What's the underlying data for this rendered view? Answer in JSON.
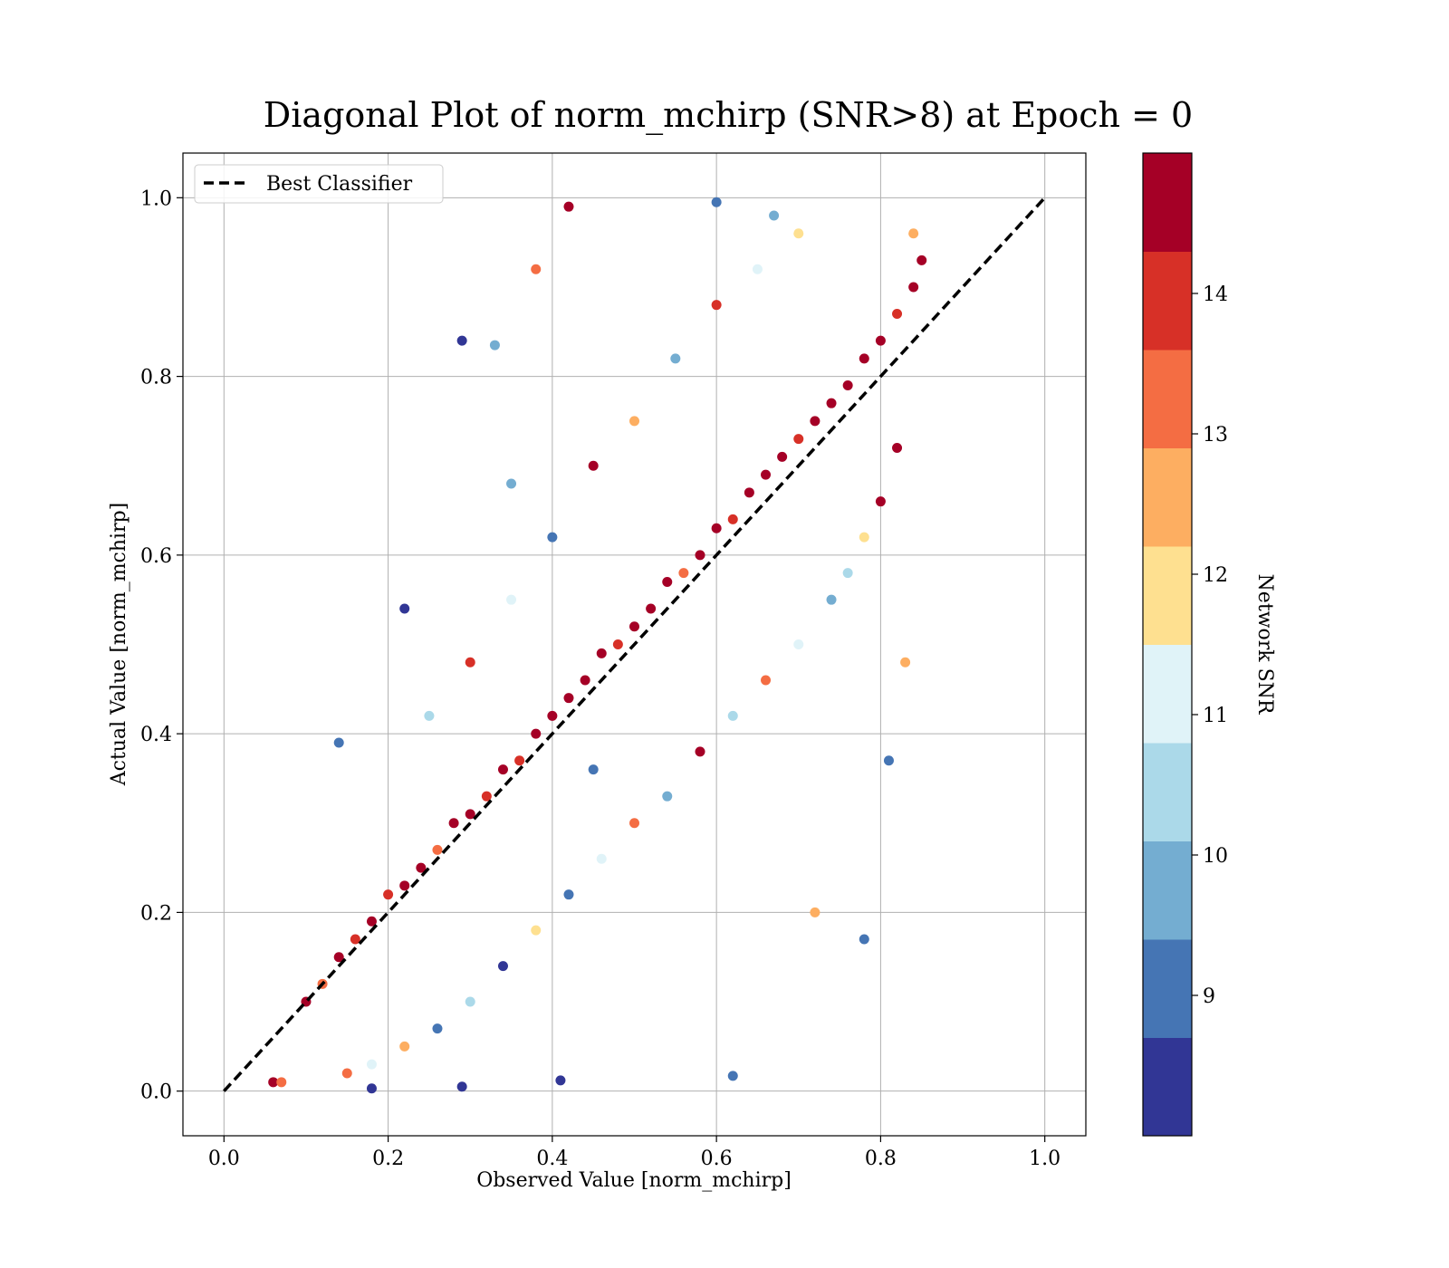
{
  "chart_data": {
    "type": "scatter",
    "title": "Diagonal Plot of norm_mchirp (SNR>8) at Epoch = 0",
    "xlabel": "Observed Value [norm_mchirp]",
    "ylabel": "Actual Value [norm_mchirp]",
    "xlim": [
      -0.05,
      1.05
    ],
    "ylim": [
      -0.05,
      1.05
    ],
    "x_ticks": [
      "0.0",
      "0.2",
      "0.4",
      "0.6",
      "0.8",
      "1.0"
    ],
    "y_ticks": [
      "0.0",
      "0.2",
      "0.4",
      "0.6",
      "0.8",
      "1.0"
    ],
    "grid": true,
    "legend": {
      "position": "top-left",
      "entries": [
        "Best Classifier"
      ]
    },
    "reference_line": {
      "name": "Best Classifier",
      "style": "dashed",
      "color": "#000000",
      "x": [
        0.0,
        1.0
      ],
      "y": [
        0.0,
        1.0
      ]
    },
    "colorbar": {
      "label": "Network SNR",
      "ticks": [
        "9",
        "10",
        "11",
        "12",
        "13",
        "14"
      ],
      "range": [
        8,
        15
      ],
      "colors": [
        "#313695",
        "#4575b4",
        "#74add1",
        "#abd9e9",
        "#e0f3f8",
        "#fee090",
        "#fdae61",
        "#f46d43",
        "#d73027",
        "#a50026"
      ]
    },
    "series": [
      {
        "marker": "circle",
        "points": [
          [
            0.06,
            0.01,
            14.5
          ],
          [
            0.07,
            0.01,
            13.2
          ],
          [
            0.18,
            0.003,
            8.3
          ],
          [
            0.29,
            0.005,
            8.4
          ],
          [
            0.41,
            0.012,
            8.6
          ],
          [
            0.62,
            0.017,
            9.0
          ],
          [
            0.42,
            0.99,
            14.6
          ],
          [
            0.6,
            0.995,
            9.2
          ],
          [
            0.67,
            0.98,
            9.6
          ],
          [
            0.29,
            0.84,
            8.4
          ],
          [
            0.33,
            0.835,
            9.4
          ],
          [
            0.22,
            0.54,
            8.5
          ],
          [
            0.14,
            0.39,
            8.8
          ],
          [
            0.72,
            0.2,
            12.4
          ],
          [
            0.78,
            0.17,
            9.1
          ],
          [
            0.81,
            0.37,
            9.3
          ],
          [
            0.83,
            0.48,
            12.6
          ],
          [
            0.38,
            0.92,
            13.1
          ],
          [
            0.35,
            0.68,
            9.9
          ],
          [
            0.45,
            0.36,
            9.2
          ],
          [
            0.1,
            0.1,
            14.7
          ],
          [
            0.12,
            0.12,
            13.6
          ],
          [
            0.14,
            0.15,
            14.8
          ],
          [
            0.16,
            0.17,
            14.2
          ],
          [
            0.18,
            0.19,
            14.9
          ],
          [
            0.2,
            0.22,
            13.8
          ],
          [
            0.22,
            0.23,
            14.6
          ],
          [
            0.24,
            0.25,
            14.9
          ],
          [
            0.26,
            0.27,
            13.3
          ],
          [
            0.28,
            0.3,
            14.7
          ],
          [
            0.3,
            0.31,
            14.9
          ],
          [
            0.32,
            0.33,
            14.1
          ],
          [
            0.34,
            0.36,
            14.8
          ],
          [
            0.36,
            0.37,
            13.7
          ],
          [
            0.38,
            0.4,
            14.9
          ],
          [
            0.4,
            0.42,
            14.3
          ],
          [
            0.42,
            0.44,
            14.9
          ],
          [
            0.44,
            0.46,
            14.6
          ],
          [
            0.46,
            0.49,
            14.9
          ],
          [
            0.48,
            0.5,
            13.9
          ],
          [
            0.5,
            0.52,
            14.9
          ],
          [
            0.52,
            0.54,
            14.4
          ],
          [
            0.54,
            0.57,
            14.9
          ],
          [
            0.56,
            0.58,
            13.5
          ],
          [
            0.58,
            0.6,
            14.8
          ],
          [
            0.6,
            0.63,
            14.9
          ],
          [
            0.62,
            0.64,
            14.2
          ],
          [
            0.64,
            0.67,
            14.9
          ],
          [
            0.66,
            0.69,
            14.6
          ],
          [
            0.68,
            0.71,
            14.9
          ],
          [
            0.7,
            0.73,
            13.8
          ],
          [
            0.72,
            0.75,
            14.9
          ],
          [
            0.74,
            0.77,
            14.3
          ],
          [
            0.76,
            0.79,
            14.9
          ],
          [
            0.78,
            0.82,
            14.6
          ],
          [
            0.8,
            0.84,
            14.9
          ],
          [
            0.82,
            0.87,
            14.1
          ],
          [
            0.84,
            0.9,
            14.9
          ],
          [
            0.85,
            0.93,
            14.7
          ],
          [
            0.84,
            0.96,
            12.6
          ],
          [
            0.82,
            0.72,
            14.9
          ],
          [
            0.8,
            0.66,
            14.4
          ],
          [
            0.78,
            0.62,
            12.2
          ],
          [
            0.76,
            0.58,
            10.6
          ],
          [
            0.74,
            0.55,
            9.5
          ],
          [
            0.7,
            0.5,
            11.4
          ],
          [
            0.66,
            0.46,
            13.2
          ],
          [
            0.62,
            0.42,
            10.3
          ],
          [
            0.58,
            0.38,
            14.5
          ],
          [
            0.54,
            0.33,
            9.8
          ],
          [
            0.5,
            0.3,
            13.6
          ],
          [
            0.46,
            0.26,
            10.9
          ],
          [
            0.42,
            0.22,
            9.3
          ],
          [
            0.38,
            0.18,
            11.7
          ],
          [
            0.34,
            0.14,
            8.7
          ],
          [
            0.3,
            0.1,
            10.2
          ],
          [
            0.26,
            0.07,
            9.1
          ],
          [
            0.22,
            0.05,
            12.3
          ],
          [
            0.18,
            0.03,
            11.0
          ],
          [
            0.15,
            0.02,
            13.4
          ],
          [
            0.45,
            0.7,
            14.8
          ],
          [
            0.5,
            0.75,
            12.8
          ],
          [
            0.55,
            0.82,
            9.4
          ],
          [
            0.6,
            0.88,
            13.9
          ],
          [
            0.65,
            0.92,
            10.8
          ],
          [
            0.7,
            0.96,
            12.1
          ],
          [
            0.4,
            0.62,
            9.0
          ],
          [
            0.35,
            0.55,
            11.2
          ],
          [
            0.3,
            0.48,
            13.7
          ],
          [
            0.25,
            0.42,
            10.4
          ]
        ]
      }
    ]
  }
}
